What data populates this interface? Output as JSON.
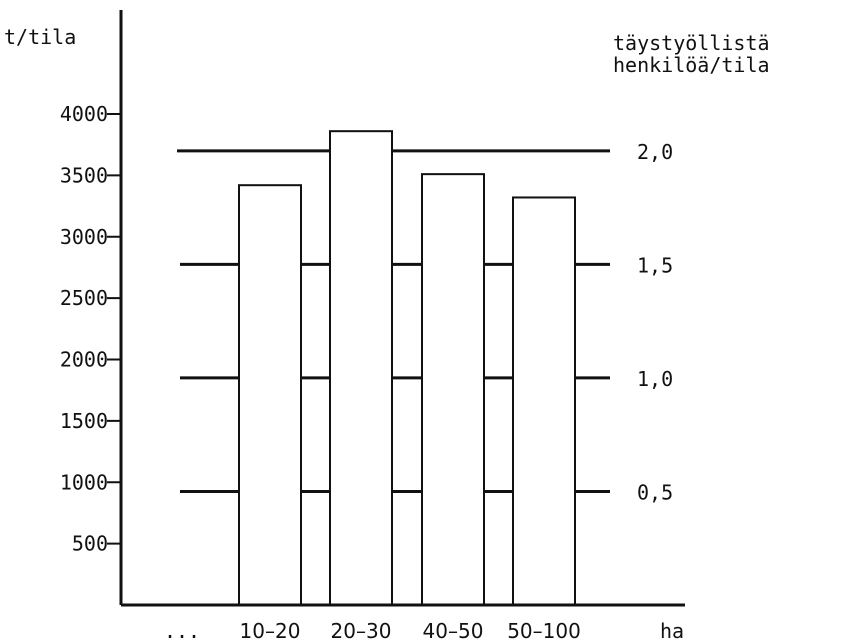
{
  "chart_data": {
    "type": "bar",
    "title": "",
    "ylabel": "t/tila",
    "y2label_line1": "täystyöllistä",
    "y2label_line2": "henkilöä/tila",
    "xlabel": "ha",
    "ylim": [
      0,
      4000
    ],
    "yticks": [
      500,
      1000,
      1500,
      2000,
      2500,
      3000,
      3500,
      4000
    ],
    "y2ticks": [
      {
        "label": "0,5",
        "value": 0.5
      },
      {
        "label": "1,0",
        "value": 1.0
      },
      {
        "label": "1,5",
        "value": 1.5
      },
      {
        "label": "2,0",
        "value": 2.0
      }
    ],
    "y2_units_per_value": 1850,
    "categories": [
      "...",
      "10–20",
      "20–30",
      "40–50",
      "50–100"
    ],
    "values": [
      null,
      3420,
      3860,
      3510,
      3320
    ],
    "grid": false,
    "legend": "none"
  }
}
